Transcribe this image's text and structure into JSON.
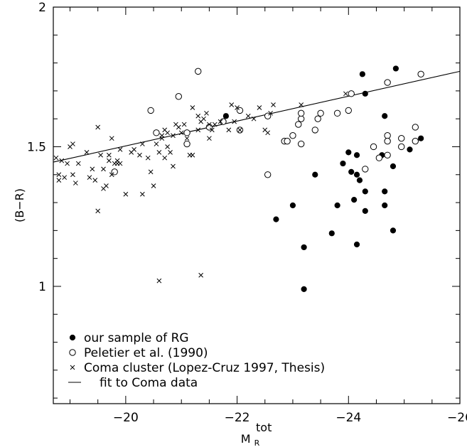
{
  "chart_data": {
    "type": "scatter",
    "xlabel": "M",
    "xlabel_sub": "R",
    "xlabel_sup": "tot",
    "ylabel": "(B−R)",
    "xlim": [
      -18.7,
      -26
    ],
    "ylim": [
      0.58,
      2.0
    ],
    "xticks": [
      -20,
      -22,
      -24,
      -26
    ],
    "yticks": [
      1,
      1.5,
      2
    ],
    "legend_position": "bottom-left",
    "series": [
      {
        "name": "our sample of RG",
        "marker": "filled-circle",
        "points": [
          [
            -21.8,
            1.61
          ],
          [
            -22.7,
            1.24
          ],
          [
            -23.0,
            1.29
          ],
          [
            -23.2,
            1.14
          ],
          [
            -23.2,
            0.99
          ],
          [
            -23.4,
            1.4
          ],
          [
            -23.7,
            1.19
          ],
          [
            -23.8,
            1.29
          ],
          [
            -23.9,
            1.44
          ],
          [
            -24.0,
            1.48
          ],
          [
            -24.05,
            1.41
          ],
          [
            -24.1,
            1.31
          ],
          [
            -24.15,
            1.47
          ],
          [
            -24.15,
            1.4
          ],
          [
            -24.15,
            1.15
          ],
          [
            -24.2,
            1.38
          ],
          [
            -24.25,
            1.76
          ],
          [
            -24.3,
            1.69
          ],
          [
            -24.3,
            1.34
          ],
          [
            -24.3,
            1.27
          ],
          [
            -24.6,
            1.47
          ],
          [
            -24.65,
            1.29
          ],
          [
            -24.65,
            1.34
          ],
          [
            -24.65,
            1.61
          ],
          [
            -24.8,
            1.43
          ],
          [
            -24.8,
            1.2
          ],
          [
            -24.85,
            1.78
          ],
          [
            -25.1,
            1.49
          ],
          [
            -25.3,
            1.53
          ]
        ]
      },
      {
        "name": "Peletier et al. (1990)",
        "marker": "open-circle",
        "points": [
          [
            -19.8,
            1.41
          ],
          [
            -20.45,
            1.63
          ],
          [
            -20.55,
            1.55
          ],
          [
            -20.95,
            1.68
          ],
          [
            -21.1,
            1.51
          ],
          [
            -21.1,
            1.55
          ],
          [
            -21.3,
            1.77
          ],
          [
            -21.5,
            1.57
          ],
          [
            -21.75,
            1.59
          ],
          [
            -22.05,
            1.56
          ],
          [
            -22.05,
            1.63
          ],
          [
            -22.55,
            1.4
          ],
          [
            -22.55,
            1.61
          ],
          [
            -22.85,
            1.52
          ],
          [
            -22.9,
            1.52
          ],
          [
            -23.0,
            1.54
          ],
          [
            -23.1,
            1.58
          ],
          [
            -23.15,
            1.6
          ],
          [
            -23.15,
            1.62
          ],
          [
            -23.15,
            1.51
          ],
          [
            -23.4,
            1.56
          ],
          [
            -23.45,
            1.6
          ],
          [
            -23.5,
            1.62
          ],
          [
            -23.8,
            1.62
          ],
          [
            -24.0,
            1.63
          ],
          [
            -24.05,
            1.69
          ],
          [
            -24.3,
            1.42
          ],
          [
            -24.45,
            1.5
          ],
          [
            -24.55,
            1.46
          ],
          [
            -24.7,
            1.73
          ],
          [
            -24.7,
            1.54
          ],
          [
            -24.7,
            1.52
          ],
          [
            -24.7,
            1.47
          ],
          [
            -24.95,
            1.53
          ],
          [
            -24.95,
            1.5
          ],
          [
            -25.2,
            1.52
          ],
          [
            -25.2,
            1.57
          ],
          [
            -25.3,
            1.76
          ]
        ]
      },
      {
        "name": "Coma cluster (Lopez-Cruz 1997, Thesis)",
        "marker": "cross",
        "points": [
          [
            -18.75,
            1.46
          ],
          [
            -18.8,
            1.4
          ],
          [
            -18.8,
            1.38
          ],
          [
            -18.85,
            1.45
          ],
          [
            -18.9,
            1.39
          ],
          [
            -18.95,
            1.44
          ],
          [
            -19.0,
            1.5
          ],
          [
            -19.05,
            1.51
          ],
          [
            -19.05,
            1.4
          ],
          [
            -19.1,
            1.37
          ],
          [
            -19.15,
            1.44
          ],
          [
            -19.3,
            1.48
          ],
          [
            -19.35,
            1.39
          ],
          [
            -19.4,
            1.42
          ],
          [
            -19.45,
            1.38
          ],
          [
            -19.5,
            1.57
          ],
          [
            -19.5,
            1.27
          ],
          [
            -19.55,
            1.47
          ],
          [
            -19.6,
            1.35
          ],
          [
            -19.6,
            1.42
          ],
          [
            -19.65,
            1.36
          ],
          [
            -19.7,
            1.45
          ],
          [
            -19.7,
            1.47
          ],
          [
            -19.75,
            1.53
          ],
          [
            -19.75,
            1.4
          ],
          [
            -19.8,
            1.44
          ],
          [
            -19.85,
            1.44
          ],
          [
            -19.85,
            1.45
          ],
          [
            -19.9,
            1.44
          ],
          [
            -19.9,
            1.49
          ],
          [
            -20.0,
            1.33
          ],
          [
            -20.1,
            1.48
          ],
          [
            -20.15,
            1.49
          ],
          [
            -20.25,
            1.47
          ],
          [
            -20.3,
            1.51
          ],
          [
            -20.3,
            1.33
          ],
          [
            -20.4,
            1.46
          ],
          [
            -20.45,
            1.41
          ],
          [
            -20.5,
            1.36
          ],
          [
            -20.55,
            1.51
          ],
          [
            -20.6,
            1.48
          ],
          [
            -20.65,
            1.53
          ],
          [
            -20.65,
            1.54
          ],
          [
            -20.7,
            1.56
          ],
          [
            -20.7,
            1.46
          ],
          [
            -20.75,
            1.55
          ],
          [
            -20.75,
            1.5
          ],
          [
            -20.8,
            1.48
          ],
          [
            -20.85,
            1.43
          ],
          [
            -20.85,
            1.54
          ],
          [
            -20.9,
            1.58
          ],
          [
            -20.95,
            1.57
          ],
          [
            -21.0,
            1.55
          ],
          [
            -21.05,
            1.58
          ],
          [
            -21.1,
            1.53
          ],
          [
            -21.15,
            1.47
          ],
          [
            -21.2,
            1.64
          ],
          [
            -21.2,
            1.47
          ],
          [
            -21.3,
            1.56
          ],
          [
            -21.3,
            1.61
          ],
          [
            -21.35,
            1.59
          ],
          [
            -21.4,
            1.6
          ],
          [
            -21.45,
            1.62
          ],
          [
            -21.5,
            1.58
          ],
          [
            -21.5,
            1.53
          ],
          [
            -21.55,
            1.56
          ],
          [
            -21.6,
            1.58
          ],
          [
            -21.7,
            1.59
          ],
          [
            -21.8,
            1.61
          ],
          [
            -21.85,
            1.56
          ],
          [
            -21.9,
            1.65
          ],
          [
            -21.95,
            1.59
          ],
          [
            -22.0,
            1.64
          ],
          [
            -22.05,
            1.56
          ],
          [
            -22.2,
            1.61
          ],
          [
            -22.3,
            1.6
          ],
          [
            -22.4,
            1.64
          ],
          [
            -22.5,
            1.56
          ],
          [
            -22.55,
            1.55
          ],
          [
            -22.6,
            1.62
          ],
          [
            -22.65,
            1.65
          ],
          [
            -23.15,
            1.65
          ],
          [
            -23.95,
            1.69
          ],
          [
            -20.6,
            1.02
          ],
          [
            -21.35,
            1.04
          ]
        ]
      },
      {
        "name": "fit to Coma data",
        "marker": "line",
        "points": [
          [
            -18.7,
            1.445
          ],
          [
            -26.0,
            1.77
          ]
        ]
      }
    ]
  }
}
